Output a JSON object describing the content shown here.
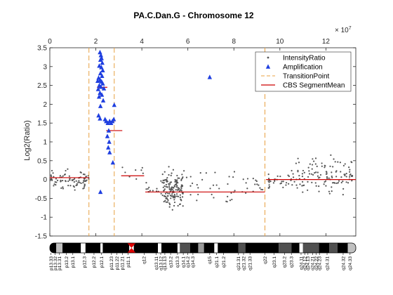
{
  "chart_data": {
    "type": "scatter",
    "title": "PA.C.Dan.G - Chromosome 12",
    "xlabel": "",
    "ylabel": "Log2(Ratio)",
    "x_multiplier_label": "× 10",
    "x_multiplier_exp": "7",
    "x_unit_scale": 10000000,
    "xlim": [
      0,
      13.3
    ],
    "ylim": [
      -1.5,
      3.5
    ],
    "xticks": [
      0,
      2,
      4,
      6,
      8,
      10,
      12
    ],
    "yticks": [
      -1.5,
      -1,
      -0.5,
      0,
      0.5,
      1,
      1.5,
      2,
      2.5,
      3,
      3.5
    ],
    "grid": false,
    "legend_position": "top-right",
    "legend": [
      "IntensityRatio",
      "Amplification",
      "TransitionPoint",
      "CBS SegmentMean"
    ],
    "colors": {
      "intensity": "#555555",
      "amplification": "#1f3fe0",
      "transition": "#e8a040",
      "segment": "#cc0000"
    },
    "transition_points": [
      1.7,
      2.8,
      9.35
    ],
    "segments": [
      {
        "x0": 0,
        "x1": 1.7,
        "y": 0.05
      },
      {
        "x0": 2.05,
        "x1": 2.5,
        "y": 2.45
      },
      {
        "x0": 2.45,
        "x1": 3.15,
        "y": 1.3
      },
      {
        "x0": 3.1,
        "x1": 4.1,
        "y": 0.1
      },
      {
        "x0": 4.15,
        "x1": 9.35,
        "y": -0.33
      },
      {
        "x0": 9.4,
        "x1": 13.3,
        "y": 0
      }
    ],
    "amplification_points": [
      [
        2.18,
        3.38
      ],
      [
        2.22,
        3.3
      ],
      [
        2.25,
        3.22
      ],
      [
        2.2,
        3.18
      ],
      [
        2.28,
        3.1
      ],
      [
        2.15,
        3.02
      ],
      [
        2.24,
        2.98
      ],
      [
        2.3,
        2.9
      ],
      [
        2.2,
        2.82
      ],
      [
        2.27,
        2.75
      ],
      [
        2.12,
        2.7
      ],
      [
        2.19,
        2.64
      ],
      [
        2.25,
        2.6
      ],
      [
        2.08,
        2.62
      ],
      [
        2.3,
        2.55
      ],
      [
        2.15,
        2.5
      ],
      [
        2.22,
        2.46
      ],
      [
        2.35,
        2.42
      ],
      [
        2.1,
        2.4
      ],
      [
        2.18,
        2.3
      ],
      [
        2.26,
        2.25
      ],
      [
        2.14,
        2.2
      ],
      [
        2.32,
        2.1
      ],
      [
        2.2,
        1.95
      ],
      [
        2.4,
        1.6
      ],
      [
        2.45,
        1.55
      ],
      [
        2.52,
        1.5
      ],
      [
        2.6,
        1.55
      ],
      [
        2.66,
        1.5
      ],
      [
        2.72,
        1.55
      ],
      [
        2.78,
        1.6
      ],
      [
        2.8,
        1.98
      ],
      [
        2.12,
        1.7
      ],
      [
        2.18,
        1.62
      ],
      [
        2.56,
        1.3
      ],
      [
        2.5,
        1.15
      ],
      [
        2.58,
        1.0
      ],
      [
        2.54,
        0.85
      ],
      [
        2.6,
        0.72
      ],
      [
        2.74,
        0.45
      ],
      [
        2.2,
        -0.33
      ],
      [
        6.95,
        2.72
      ]
    ],
    "intensity_bands": [
      {
        "x0": 0.0,
        "x1": 1.7,
        "y0": -0.35,
        "y1": 0.35,
        "n": 85
      },
      {
        "x0": 3.1,
        "x1": 4.1,
        "y0": -0.15,
        "y1": 0.6,
        "n": 8
      },
      {
        "x0": 4.1,
        "x1": 4.9,
        "y0": -0.55,
        "y1": 0.1,
        "n": 14
      },
      {
        "x0": 4.9,
        "x1": 5.8,
        "y0": -0.95,
        "y1": 0.45,
        "n": 150
      },
      {
        "x0": 5.8,
        "x1": 7.2,
        "y0": -0.7,
        "y1": 0.3,
        "n": 18
      },
      {
        "x0": 7.2,
        "x1": 9.3,
        "y0": -0.9,
        "y1": 0.35,
        "n": 30
      },
      {
        "x0": 9.45,
        "x1": 10.7,
        "y0": -0.35,
        "y1": 0.3,
        "n": 35
      },
      {
        "x0": 10.7,
        "x1": 13.2,
        "y0": -0.6,
        "y1": 0.8,
        "n": 120
      }
    ],
    "ideogram": {
      "label_rotation": -90,
      "centromere_x": 3.55,
      "blocks": [
        {
          "x0": 0.0,
          "x1": 0.28,
          "shade": "#000000"
        },
        {
          "x0": 0.28,
          "x1": 0.55,
          "shade": "#c0c0c0"
        },
        {
          "x0": 0.55,
          "x1": 1.35,
          "shade": "#000000"
        },
        {
          "x0": 1.35,
          "x1": 1.55,
          "shade": "#ffffff"
        },
        {
          "x0": 1.55,
          "x1": 2.2,
          "shade": "#000000"
        },
        {
          "x0": 2.2,
          "x1": 2.3,
          "shade": "#ffffff"
        },
        {
          "x0": 2.3,
          "x1": 3.45,
          "shade": "#000000"
        },
        {
          "x0": 3.65,
          "x1": 4.7,
          "shade": "#000000"
        },
        {
          "x0": 4.7,
          "x1": 4.85,
          "shade": "#ffffff"
        },
        {
          "x0": 4.85,
          "x1": 5.55,
          "shade": "#000000"
        },
        {
          "x0": 5.55,
          "x1": 5.65,
          "shade": "#ffffff"
        },
        {
          "x0": 5.65,
          "x1": 6.1,
          "shade": "#505050"
        },
        {
          "x0": 6.1,
          "x1": 6.45,
          "shade": "#000000"
        },
        {
          "x0": 6.45,
          "x1": 6.7,
          "shade": "#9a9a9a"
        },
        {
          "x0": 6.7,
          "x1": 7.15,
          "shade": "#000000"
        },
        {
          "x0": 7.15,
          "x1": 7.3,
          "shade": "#ffffff"
        },
        {
          "x0": 7.3,
          "x1": 8.2,
          "shade": "#000000"
        },
        {
          "x0": 8.2,
          "x1": 8.5,
          "shade": "#505050"
        },
        {
          "x0": 8.5,
          "x1": 9.95,
          "shade": "#000000"
        },
        {
          "x0": 9.95,
          "x1": 10.5,
          "shade": "#505050"
        },
        {
          "x0": 10.5,
          "x1": 10.85,
          "shade": "#000000"
        },
        {
          "x0": 10.85,
          "x1": 11.0,
          "shade": "#ffffff"
        },
        {
          "x0": 11.0,
          "x1": 11.7,
          "shade": "#505050"
        },
        {
          "x0": 11.7,
          "x1": 12.15,
          "shade": "#000000"
        },
        {
          "x0": 12.15,
          "x1": 12.5,
          "shade": "#505050"
        },
        {
          "x0": 12.5,
          "x1": 12.95,
          "shade": "#000000"
        },
        {
          "x0": 12.95,
          "x1": 13.3,
          "shade": "#c0c0c0"
        }
      ],
      "bands": [
        {
          "label": "p13.33",
          "x": 0.05
        },
        {
          "label": "p13.32",
          "x": 0.23
        },
        {
          "label": "p13.31",
          "x": 0.42
        },
        {
          "label": "p13.2",
          "x": 0.72
        },
        {
          "label": "p13.1",
          "x": 1.0
        },
        {
          "label": "p12.3",
          "x": 1.5
        },
        {
          "label": "p12.2",
          "x": 1.92
        },
        {
          "label": "p12.1",
          "x": 2.25
        },
        {
          "label": "p11.23",
          "x": 2.68
        },
        {
          "label": "p11.22",
          "x": 2.92
        },
        {
          "label": "p11.21",
          "x": 3.15
        },
        {
          "label": "p11.1",
          "x": 3.4
        },
        {
          "label": "q12",
          "x": 4.1
        },
        {
          "label": "q13.11",
          "x": 4.62
        },
        {
          "label": "q13.12",
          "x": 4.82
        },
        {
          "label": "q13.13",
          "x": 5.0
        },
        {
          "label": "q13.2",
          "x": 5.25
        },
        {
          "label": "q13.3",
          "x": 5.55
        },
        {
          "label": "q14.1",
          "x": 5.8
        },
        {
          "label": "q14.2",
          "x": 6.0
        },
        {
          "label": "q14.3",
          "x": 6.22
        },
        {
          "label": "q15",
          "x": 6.95
        },
        {
          "label": "q21.1",
          "x": 7.25
        },
        {
          "label": "q21.2",
          "x": 7.55
        },
        {
          "label": "q21.31",
          "x": 8.2
        },
        {
          "label": "q21.32",
          "x": 8.42
        },
        {
          "label": "q21.33",
          "x": 8.7
        },
        {
          "label": "q22",
          "x": 9.35
        },
        {
          "label": "q23.1",
          "x": 9.75
        },
        {
          "label": "q23.2",
          "x": 10.2
        },
        {
          "label": "q23.3",
          "x": 10.5
        },
        {
          "label": "q24.11",
          "x": 10.92
        },
        {
          "label": "q24.12",
          "x": 11.08
        },
        {
          "label": "q24.13",
          "x": 11.22
        },
        {
          "label": "q24.21",
          "x": 11.42
        },
        {
          "label": "q24.22",
          "x": 11.58
        },
        {
          "label": "q24.23",
          "x": 11.72
        },
        {
          "label": "q24.31",
          "x": 12.05
        },
        {
          "label": "q24.32",
          "x": 12.75
        },
        {
          "label": "q24.33",
          "x": 13.05
        }
      ]
    }
  }
}
